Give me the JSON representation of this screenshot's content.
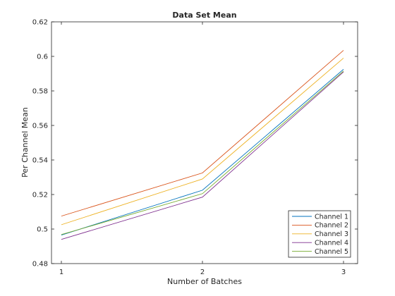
{
  "chart_data": {
    "type": "line",
    "title": "Data Set Mean",
    "xlabel": "Number of Batches",
    "ylabel": "Per Channel Mean",
    "x": [
      1,
      2,
      3
    ],
    "xlim": [
      0.93,
      3.1
    ],
    "ylim": [
      0.48,
      0.62
    ],
    "xticks": [
      1,
      2,
      3
    ],
    "yticks": [
      0.48,
      0.5,
      0.52,
      0.54,
      0.56,
      0.58,
      0.6,
      0.62
    ],
    "grid": false,
    "legend_position": "bottom-right",
    "series": [
      {
        "name": "Channel 1",
        "color": "#0072bd",
        "values": [
          0.4965,
          0.5225,
          0.5925
        ]
      },
      {
        "name": "Channel 2",
        "color": "#d95319",
        "values": [
          0.5075,
          0.5325,
          0.6035
        ]
      },
      {
        "name": "Channel 3",
        "color": "#edb120",
        "values": [
          0.5025,
          0.529,
          0.599
        ]
      },
      {
        "name": "Channel 4",
        "color": "#7e2f8e",
        "values": [
          0.494,
          0.5185,
          0.591
        ]
      },
      {
        "name": "Channel 5",
        "color": "#77ac30",
        "values": [
          0.4968,
          0.5205,
          0.5915
        ]
      }
    ]
  }
}
